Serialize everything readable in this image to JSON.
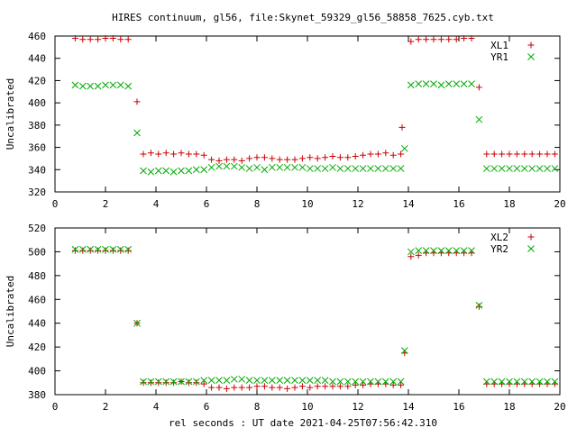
{
  "title": "HIRES continuum, gl56, file:Skynet_59329_gl56_58858_7625.cyb.txt",
  "chart_data": [
    {
      "type": "scatter",
      "ylabel": "Uncalibrated",
      "xlim": [
        0,
        20
      ],
      "ylim": [
        320,
        460
      ],
      "xticks": [
        "0",
        "2",
        "4",
        "6",
        "8",
        "10",
        "12",
        "14",
        "16",
        "18",
        "20"
      ],
      "yticks": [
        "320",
        "340",
        "360",
        "380",
        "400",
        "420",
        "440",
        "460"
      ],
      "legend_position": "top-right",
      "series": [
        {
          "name": "XL1",
          "marker": "plus",
          "color": "#cc0000",
          "points": [
            [
              0.8,
              458
            ],
            [
              1.1,
              457
            ],
            [
              1.4,
              457
            ],
            [
              1.7,
              457
            ],
            [
              2.0,
              458
            ],
            [
              2.3,
              458
            ],
            [
              2.6,
              457
            ],
            [
              2.9,
              457
            ],
            [
              3.25,
              401
            ],
            [
              3.5,
              354
            ],
            [
              3.8,
              355
            ],
            [
              4.1,
              354
            ],
            [
              4.4,
              355
            ],
            [
              4.7,
              354
            ],
            [
              5.0,
              355
            ],
            [
              5.3,
              354
            ],
            [
              5.6,
              354
            ],
            [
              5.9,
              353
            ],
            [
              6.2,
              349
            ],
            [
              6.5,
              348
            ],
            [
              6.8,
              349
            ],
            [
              7.1,
              349
            ],
            [
              7.4,
              348
            ],
            [
              7.7,
              350
            ],
            [
              8.0,
              351
            ],
            [
              8.3,
              351
            ],
            [
              8.6,
              350
            ],
            [
              8.9,
              349
            ],
            [
              9.2,
              349
            ],
            [
              9.5,
              349
            ],
            [
              9.8,
              350
            ],
            [
              10.1,
              351
            ],
            [
              10.4,
              350
            ],
            [
              10.7,
              351
            ],
            [
              11.0,
              352
            ],
            [
              11.3,
              351
            ],
            [
              11.6,
              351
            ],
            [
              11.9,
              352
            ],
            [
              12.2,
              353
            ],
            [
              12.5,
              354
            ],
            [
              12.8,
              354
            ],
            [
              13.1,
              355
            ],
            [
              13.4,
              353
            ],
            [
              13.7,
              354
            ],
            [
              13.75,
              378
            ],
            [
              14.1,
              455
            ],
            [
              14.4,
              457
            ],
            [
              14.7,
              457
            ],
            [
              15.0,
              457
            ],
            [
              15.3,
              457
            ],
            [
              15.6,
              457
            ],
            [
              15.9,
              457
            ],
            [
              16.2,
              458
            ],
            [
              16.5,
              458
            ],
            [
              16.8,
              414
            ],
            [
              17.1,
              354
            ],
            [
              17.4,
              354
            ],
            [
              17.7,
              354
            ],
            [
              18.0,
              354
            ],
            [
              18.3,
              354
            ],
            [
              18.6,
              354
            ],
            [
              18.9,
              354
            ],
            [
              19.2,
              354
            ],
            [
              19.5,
              354
            ],
            [
              19.8,
              354
            ]
          ]
        },
        {
          "name": "YR1",
          "marker": "cross",
          "color": "#00aa00",
          "points": [
            [
              0.8,
              416
            ],
            [
              1.1,
              415
            ],
            [
              1.4,
              415
            ],
            [
              1.7,
              415
            ],
            [
              2.0,
              416
            ],
            [
              2.3,
              416
            ],
            [
              2.6,
              416
            ],
            [
              2.9,
              415
            ],
            [
              3.25,
              373
            ],
            [
              3.5,
              339
            ],
            [
              3.8,
              338
            ],
            [
              4.1,
              339
            ],
            [
              4.4,
              339
            ],
            [
              4.7,
              338
            ],
            [
              5.0,
              339
            ],
            [
              5.3,
              339
            ],
            [
              5.6,
              340
            ],
            [
              5.9,
              340
            ],
            [
              6.2,
              342
            ],
            [
              6.5,
              343
            ],
            [
              6.8,
              343
            ],
            [
              7.1,
              343
            ],
            [
              7.4,
              342
            ],
            [
              7.7,
              341
            ],
            [
              8.0,
              342
            ],
            [
              8.3,
              340
            ],
            [
              8.6,
              342
            ],
            [
              8.9,
              342
            ],
            [
              9.2,
              342
            ],
            [
              9.5,
              342
            ],
            [
              9.8,
              342
            ],
            [
              10.1,
              341
            ],
            [
              10.4,
              341
            ],
            [
              10.7,
              341
            ],
            [
              11.0,
              342
            ],
            [
              11.3,
              341
            ],
            [
              11.6,
              341
            ],
            [
              11.9,
              341
            ],
            [
              12.2,
              341
            ],
            [
              12.5,
              341
            ],
            [
              12.8,
              341
            ],
            [
              13.1,
              341
            ],
            [
              13.4,
              341
            ],
            [
              13.7,
              341
            ],
            [
              13.85,
              359
            ],
            [
              14.1,
              416
            ],
            [
              14.4,
              417
            ],
            [
              14.7,
              417
            ],
            [
              15.0,
              417
            ],
            [
              15.3,
              416
            ],
            [
              15.6,
              417
            ],
            [
              15.9,
              417
            ],
            [
              16.2,
              417
            ],
            [
              16.5,
              417
            ],
            [
              16.8,
              385
            ],
            [
              17.1,
              341
            ],
            [
              17.4,
              341
            ],
            [
              17.7,
              341
            ],
            [
              18.0,
              341
            ],
            [
              18.3,
              341
            ],
            [
              18.6,
              341
            ],
            [
              18.9,
              341
            ],
            [
              19.2,
              341
            ],
            [
              19.5,
              341
            ],
            [
              19.8,
              341
            ]
          ]
        }
      ]
    },
    {
      "type": "scatter",
      "xlabel": "rel seconds : UT date 2021-04-25T07:56:42.310",
      "ylabel": "Uncalibrated",
      "xlim": [
        0,
        20
      ],
      "ylim": [
        380,
        520
      ],
      "xticks": [
        "0",
        "2",
        "4",
        "6",
        "8",
        "10",
        "12",
        "14",
        "16",
        "18",
        "20"
      ],
      "yticks": [
        "380",
        "400",
        "420",
        "440",
        "460",
        "480",
        "500",
        "520"
      ],
      "legend_position": "top-right",
      "series": [
        {
          "name": "XL2",
          "marker": "plus",
          "color": "#cc0000",
          "points": [
            [
              0.8,
              501
            ],
            [
              1.1,
              501
            ],
            [
              1.4,
              501
            ],
            [
              1.7,
              501
            ],
            [
              2.0,
              501
            ],
            [
              2.3,
              501
            ],
            [
              2.6,
              501
            ],
            [
              2.9,
              501
            ],
            [
              3.25,
              440
            ],
            [
              3.5,
              390
            ],
            [
              3.8,
              390
            ],
            [
              4.1,
              390
            ],
            [
              4.4,
              390
            ],
            [
              4.7,
              390
            ],
            [
              5.0,
              391
            ],
            [
              5.3,
              390
            ],
            [
              5.6,
              390
            ],
            [
              5.9,
              389
            ],
            [
              6.2,
              386
            ],
            [
              6.5,
              386
            ],
            [
              6.8,
              385
            ],
            [
              7.1,
              386
            ],
            [
              7.4,
              386
            ],
            [
              7.7,
              386
            ],
            [
              8.0,
              387
            ],
            [
              8.3,
              387
            ],
            [
              8.6,
              386
            ],
            [
              8.9,
              386
            ],
            [
              9.2,
              385
            ],
            [
              9.5,
              386
            ],
            [
              9.8,
              387
            ],
            [
              10.1,
              386
            ],
            [
              10.4,
              387
            ],
            [
              10.7,
              387
            ],
            [
              11.0,
              387
            ],
            [
              11.3,
              387
            ],
            [
              11.6,
              387
            ],
            [
              11.9,
              388
            ],
            [
              12.2,
              388
            ],
            [
              12.5,
              389
            ],
            [
              12.8,
              389
            ],
            [
              13.1,
              389
            ],
            [
              13.4,
              388
            ],
            [
              13.7,
              388
            ],
            [
              13.85,
              415
            ],
            [
              14.1,
              496
            ],
            [
              14.4,
              497
            ],
            [
              14.7,
              499
            ],
            [
              15.0,
              499
            ],
            [
              15.3,
              499
            ],
            [
              15.6,
              499
            ],
            [
              15.9,
              499
            ],
            [
              16.2,
              499
            ],
            [
              16.5,
              499
            ],
            [
              16.8,
              454
            ],
            [
              17.1,
              389
            ],
            [
              17.4,
              389
            ],
            [
              17.7,
              389
            ],
            [
              18.0,
              389
            ],
            [
              18.3,
              389
            ],
            [
              18.6,
              389
            ],
            [
              18.9,
              389
            ],
            [
              19.2,
              389
            ],
            [
              19.5,
              389
            ],
            [
              19.8,
              389
            ]
          ]
        },
        {
          "name": "YR2",
          "marker": "cross",
          "color": "#00aa00",
          "points": [
            [
              0.8,
              502
            ],
            [
              1.1,
              502
            ],
            [
              1.4,
              502
            ],
            [
              1.7,
              502
            ],
            [
              2.0,
              502
            ],
            [
              2.3,
              502
            ],
            [
              2.6,
              502
            ],
            [
              2.9,
              502
            ],
            [
              3.25,
              440
            ],
            [
              3.5,
              391
            ],
            [
              3.8,
              391
            ],
            [
              4.1,
              391
            ],
            [
              4.4,
              391
            ],
            [
              4.7,
              391
            ],
            [
              5.0,
              391
            ],
            [
              5.3,
              391
            ],
            [
              5.6,
              391
            ],
            [
              5.9,
              392
            ],
            [
              6.2,
              392
            ],
            [
              6.5,
              392
            ],
            [
              6.8,
              392
            ],
            [
              7.1,
              393
            ],
            [
              7.4,
              393
            ],
            [
              7.7,
              392
            ],
            [
              8.0,
              392
            ],
            [
              8.3,
              392
            ],
            [
              8.6,
              392
            ],
            [
              8.9,
              392
            ],
            [
              9.2,
              392
            ],
            [
              9.5,
              392
            ],
            [
              9.8,
              392
            ],
            [
              10.1,
              392
            ],
            [
              10.4,
              392
            ],
            [
              10.7,
              392
            ],
            [
              11.0,
              391
            ],
            [
              11.3,
              391
            ],
            [
              11.6,
              391
            ],
            [
              11.9,
              391
            ],
            [
              12.2,
              391
            ],
            [
              12.5,
              391
            ],
            [
              12.8,
              391
            ],
            [
              13.1,
              391
            ],
            [
              13.4,
              391
            ],
            [
              13.7,
              391
            ],
            [
              13.85,
              417
            ],
            [
              14.1,
              500
            ],
            [
              14.4,
              501
            ],
            [
              14.7,
              501
            ],
            [
              15.0,
              501
            ],
            [
              15.3,
              501
            ],
            [
              15.6,
              501
            ],
            [
              15.9,
              501
            ],
            [
              16.2,
              501
            ],
            [
              16.5,
              501
            ],
            [
              16.8,
              455
            ],
            [
              17.1,
              391
            ],
            [
              17.4,
              391
            ],
            [
              17.7,
              391
            ],
            [
              18.0,
              391
            ],
            [
              18.3,
              391
            ],
            [
              18.6,
              391
            ],
            [
              18.9,
              391
            ],
            [
              19.2,
              391
            ],
            [
              19.5,
              391
            ],
            [
              19.8,
              391
            ]
          ]
        }
      ]
    }
  ]
}
